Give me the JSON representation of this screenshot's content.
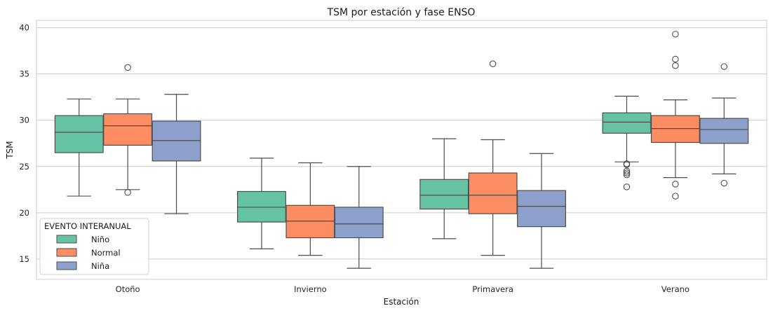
{
  "chart_data": {
    "type": "boxplot",
    "title": "TSM por estación y fase ENSO",
    "xlabel": "Estación",
    "ylabel": "TSM",
    "categories": [
      "Otoño",
      "Invierno",
      "Primavera",
      "Verano"
    ],
    "ylim": [
      12.8,
      40.8
    ],
    "yticks": [
      15,
      20,
      25,
      30,
      35,
      40
    ],
    "grid": true,
    "legend": {
      "title": "EVENTO INTERANUAL",
      "placement": "lower-left"
    },
    "series": [
      {
        "name": "Niño",
        "color": "#66c2a5",
        "boxes": [
          {
            "min": 21.8,
            "q1": 26.5,
            "median": 28.7,
            "q3": 30.5,
            "max": 32.3,
            "outliers": []
          },
          {
            "min": 16.1,
            "q1": 19.0,
            "median": 20.6,
            "q3": 22.3,
            "max": 25.9,
            "outliers": []
          },
          {
            "min": 17.2,
            "q1": 20.4,
            "median": 21.9,
            "q3": 23.6,
            "max": 28.0,
            "outliers": []
          },
          {
            "min": 25.5,
            "q1": 28.6,
            "median": 29.8,
            "q3": 30.8,
            "max": 32.6,
            "outliers": [
              25.3,
              25.2,
              24.5,
              24.3,
              24.1,
              22.8
            ]
          }
        ]
      },
      {
        "name": "Normal",
        "color": "#fc8d62",
        "boxes": [
          {
            "min": 22.5,
            "q1": 27.3,
            "median": 29.4,
            "q3": 30.7,
            "max": 32.3,
            "outliers": [
              35.7,
              22.2
            ]
          },
          {
            "min": 15.4,
            "q1": 17.3,
            "median": 19.1,
            "q3": 20.8,
            "max": 25.4,
            "outliers": []
          },
          {
            "min": 15.4,
            "q1": 19.9,
            "median": 21.9,
            "q3": 24.3,
            "max": 27.9,
            "outliers": [
              36.1
            ]
          },
          {
            "min": 23.8,
            "q1": 27.6,
            "median": 29.1,
            "q3": 30.5,
            "max": 32.2,
            "outliers": [
              39.3,
              36.6,
              35.9,
              23.1,
              21.8
            ]
          }
        ]
      },
      {
        "name": "Niña",
        "color": "#8da0cb",
        "boxes": [
          {
            "min": 19.9,
            "q1": 25.6,
            "median": 27.8,
            "q3": 29.9,
            "max": 32.8,
            "outliers": []
          },
          {
            "min": 14.0,
            "q1": 17.3,
            "median": 18.8,
            "q3": 20.6,
            "max": 25.0,
            "outliers": []
          },
          {
            "min": 14.0,
            "q1": 18.5,
            "median": 20.7,
            "q3": 22.4,
            "max": 26.4,
            "outliers": []
          },
          {
            "min": 24.2,
            "q1": 27.5,
            "median": 29.0,
            "q3": 30.2,
            "max": 32.4,
            "outliers": [
              35.8,
              23.2
            ]
          }
        ]
      }
    ]
  }
}
